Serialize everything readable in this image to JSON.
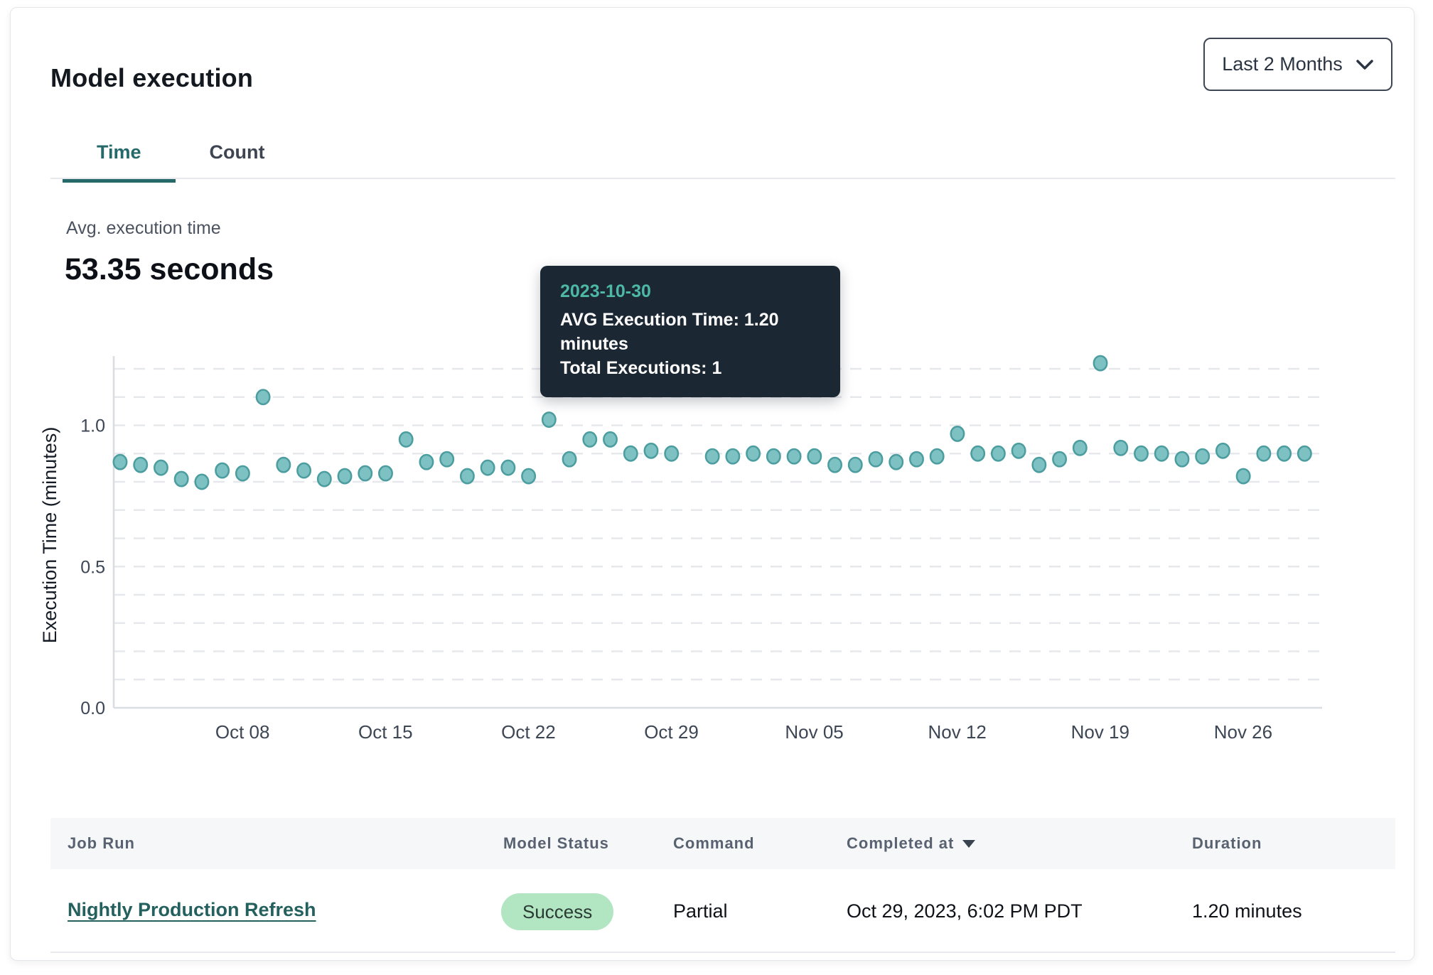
{
  "header": {
    "title": "Model execution",
    "range_selector": {
      "value": "Last 2 Months"
    }
  },
  "tabs": [
    {
      "label": "Time",
      "active": true
    },
    {
      "label": "Count",
      "active": false
    }
  ],
  "metric": {
    "label": "Avg. execution time",
    "value": "53.35 seconds"
  },
  "tooltip": {
    "date": "2023-10-30",
    "line1": "AVG Execution Time: 1.20 minutes",
    "line2": "Total Executions: 1"
  },
  "chart_data": {
    "type": "scatter",
    "title": "",
    "xlabel": "",
    "ylabel": "Execution Time (minutes)",
    "ylim": [
      0,
      1.28
    ],
    "grid": true,
    "grid_step": 0.1,
    "grid_max": 1.2,
    "yticks": [
      0,
      0.5,
      1.0
    ],
    "ytick_labels": [
      "0.0",
      "0.5",
      "1.0"
    ],
    "xtick_labels": [
      "Oct 08",
      "Oct 15",
      "Oct 22",
      "Oct 29",
      "Nov 05",
      "Nov 12",
      "Nov 19",
      "Nov 26"
    ],
    "x": [
      "2023-10-02",
      "2023-10-03",
      "2023-10-04",
      "2023-10-05",
      "2023-10-06",
      "2023-10-07",
      "2023-10-08",
      "2023-10-09",
      "2023-10-10",
      "2023-10-11",
      "2023-10-12",
      "2023-10-13",
      "2023-10-14",
      "2023-10-15",
      "2023-10-16",
      "2023-10-17",
      "2023-10-18",
      "2023-10-19",
      "2023-10-20",
      "2023-10-21",
      "2023-10-22",
      "2023-10-23",
      "2023-10-24",
      "2023-10-25",
      "2023-10-26",
      "2023-10-27",
      "2023-10-28",
      "2023-10-29",
      "2023-10-30",
      "2023-10-31",
      "2023-11-01",
      "2023-11-02",
      "2023-11-03",
      "2023-11-04",
      "2023-11-05",
      "2023-11-06",
      "2023-11-07",
      "2023-11-08",
      "2023-11-09",
      "2023-11-10",
      "2023-11-11",
      "2023-11-12",
      "2023-11-13",
      "2023-11-14",
      "2023-11-15",
      "2023-11-16",
      "2023-11-17",
      "2023-11-18",
      "2023-11-19",
      "2023-11-20",
      "2023-11-21",
      "2023-11-22",
      "2023-11-23",
      "2023-11-24",
      "2023-11-25",
      "2023-11-26",
      "2023-11-27",
      "2023-11-28",
      "2023-11-29"
    ],
    "values": [
      0.87,
      0.86,
      0.85,
      0.81,
      0.8,
      0.84,
      0.83,
      1.1,
      0.86,
      0.84,
      0.81,
      0.82,
      0.83,
      0.83,
      0.95,
      0.87,
      0.88,
      0.82,
      0.85,
      0.85,
      0.82,
      1.02,
      0.88,
      0.95,
      0.95,
      0.9,
      0.91,
      0.9,
      1.2,
      0.89,
      0.89,
      0.9,
      0.89,
      0.89,
      0.89,
      0.86,
      0.86,
      0.88,
      0.87,
      0.88,
      0.89,
      0.97,
      0.9,
      0.9,
      0.91,
      0.86,
      0.88,
      0.92,
      1.22,
      0.92,
      0.9,
      0.9,
      0.88,
      0.89,
      0.91,
      0.82,
      0.9,
      0.9,
      0.9
    ],
    "highlight_index": 28,
    "highlight_date": "2023-10-30",
    "colors": {
      "point_fill": "#7dc1c2",
      "point_stroke": "#4c9d9f",
      "highlight": "#3c8688",
      "grid": "#e6e8ec",
      "axis": "#d9dce1",
      "tick_text": "#3d4654",
      "axis_label_text": "#161c26"
    }
  },
  "table": {
    "columns": [
      {
        "label": "Job Run",
        "sorted": false
      },
      {
        "label": "Model Status",
        "sorted": false
      },
      {
        "label": "Command",
        "sorted": false
      },
      {
        "label": "Completed at",
        "sorted": true
      },
      {
        "label": "Duration",
        "sorted": false
      }
    ],
    "rows": [
      {
        "job_run": "Nightly Production Refresh",
        "model_status": "Success",
        "command": "Partial",
        "completed_at": "Oct 29, 2023, 6:02 PM PDT",
        "duration": "1.20 minutes"
      }
    ]
  },
  "colors": {
    "accent_teal": "#26696a",
    "link_teal": "#24605d",
    "success_badge_bg": "#b2e6c3",
    "tooltip_bg": "#1b2733",
    "tooltip_date": "#4cb8a5"
  }
}
